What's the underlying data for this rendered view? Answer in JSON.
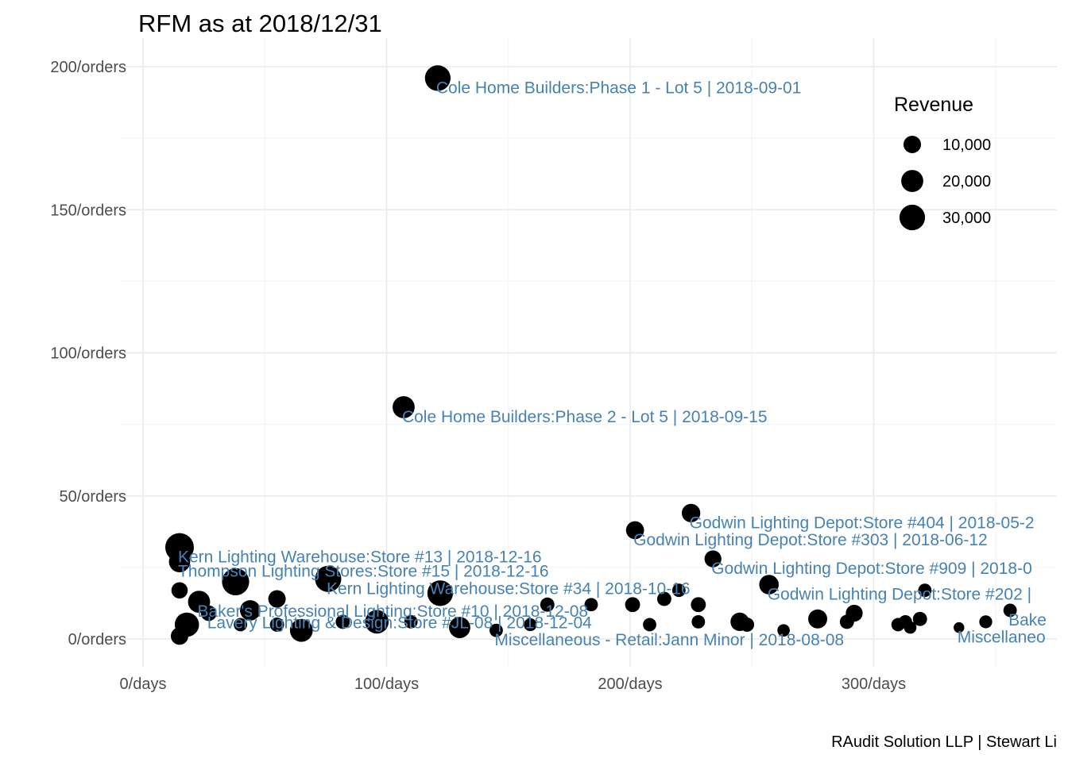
{
  "chart_data": {
    "type": "scatter",
    "title": "RFM as at 2018/12/31",
    "caption": "RAudit Solution LLP | Stewart Li",
    "xlabel": "",
    "ylabel": "",
    "xlim": [
      -10,
      377
    ],
    "ylim": [
      -10,
      208
    ],
    "x_ticks": [
      {
        "value": 0,
        "label": "0/days"
      },
      {
        "value": 100,
        "label": "100/days"
      },
      {
        "value": 200,
        "label": "200/days"
      },
      {
        "value": 300,
        "label": "300/days"
      }
    ],
    "x_minor": [
      50,
      150,
      250,
      350
    ],
    "y_ticks": [
      {
        "value": 0,
        "label": "0/orders"
      },
      {
        "value": 50,
        "label": "50/orders"
      },
      {
        "value": 100,
        "label": "100/orders"
      },
      {
        "value": 150,
        "label": "150/orders"
      },
      {
        "value": 200,
        "label": "200/orders"
      }
    ],
    "y_minor": [
      25,
      75,
      125,
      175
    ],
    "grid": true,
    "size_variable": "Revenue",
    "label_color": "#4682b4",
    "point_color": "#000000",
    "legend": {
      "title": "Revenue",
      "placement": "top-right",
      "entries": [
        {
          "label": "10,000",
          "value": 10000
        },
        {
          "label": "20,000",
          "value": 20000
        },
        {
          "label": "30,000",
          "value": 30000
        }
      ]
    },
    "points": [
      {
        "x": 121,
        "y": 196,
        "revenue": 30000
      },
      {
        "x": 107,
        "y": 81,
        "revenue": 20000
      },
      {
        "x": 225,
        "y": 44,
        "revenue": 12000
      },
      {
        "x": 202,
        "y": 38,
        "revenue": 11000
      },
      {
        "x": 234,
        "y": 28,
        "revenue": 9000
      },
      {
        "x": 257,
        "y": 19,
        "revenue": 14000
      },
      {
        "x": 15,
        "y": 32,
        "revenue": 40000
      },
      {
        "x": 15,
        "y": 27,
        "revenue": 18000
      },
      {
        "x": 38,
        "y": 20,
        "revenue": 35000
      },
      {
        "x": 76,
        "y": 21,
        "revenue": 32000
      },
      {
        "x": 122,
        "y": 16,
        "revenue": 30000
      },
      {
        "x": 15,
        "y": 17,
        "revenue": 8000
      },
      {
        "x": 23,
        "y": 13,
        "revenue": 20000
      },
      {
        "x": 27,
        "y": 9,
        "revenue": 7000
      },
      {
        "x": 44,
        "y": 10,
        "revenue": 16000
      },
      {
        "x": 55,
        "y": 14,
        "revenue": 10000
      },
      {
        "x": 18,
        "y": 5,
        "revenue": 26000
      },
      {
        "x": 15,
        "y": 1,
        "revenue": 10000
      },
      {
        "x": 40,
        "y": 5,
        "revenue": 4000
      },
      {
        "x": 55,
        "y": 5,
        "revenue": 5000
      },
      {
        "x": 65,
        "y": 3,
        "revenue": 22000
      },
      {
        "x": 82,
        "y": 6,
        "revenue": 5000
      },
      {
        "x": 96,
        "y": 6,
        "revenue": 24000
      },
      {
        "x": 110,
        "y": 6,
        "revenue": 4000
      },
      {
        "x": 130,
        "y": 4,
        "revenue": 18000
      },
      {
        "x": 145,
        "y": 3,
        "revenue": 4000
      },
      {
        "x": 159,
        "y": 5,
        "revenue": 3500
      },
      {
        "x": 166,
        "y": 12,
        "revenue": 5000
      },
      {
        "x": 184,
        "y": 12,
        "revenue": 4000
      },
      {
        "x": 201,
        "y": 12,
        "revenue": 6000
      },
      {
        "x": 208,
        "y": 5,
        "revenue": 4000
      },
      {
        "x": 214,
        "y": 14,
        "revenue": 5000
      },
      {
        "x": 220,
        "y": 17,
        "revenue": 4000
      },
      {
        "x": 228,
        "y": 12,
        "revenue": 6000
      },
      {
        "x": 228,
        "y": 6,
        "revenue": 4000
      },
      {
        "x": 245,
        "y": 6,
        "revenue": 12000
      },
      {
        "x": 248,
        "y": 5,
        "revenue": 5000
      },
      {
        "x": 263,
        "y": 3,
        "revenue": 3000
      },
      {
        "x": 277,
        "y": 7,
        "revenue": 13000
      },
      {
        "x": 289,
        "y": 6,
        "revenue": 5000
      },
      {
        "x": 292,
        "y": 9,
        "revenue": 9000
      },
      {
        "x": 310,
        "y": 5,
        "revenue": 4000
      },
      {
        "x": 313,
        "y": 6,
        "revenue": 4000
      },
      {
        "x": 315,
        "y": 4,
        "revenue": 3000
      },
      {
        "x": 319,
        "y": 7,
        "revenue": 5000
      },
      {
        "x": 321,
        "y": 17,
        "revenue": 4000
      },
      {
        "x": 335,
        "y": 4,
        "revenue": 1500
      },
      {
        "x": 346,
        "y": 6,
        "revenue": 3500
      },
      {
        "x": 356,
        "y": 10,
        "revenue": 4000
      }
    ],
    "annotations": [
      {
        "x": 121,
        "y": 196,
        "text": "Cole Home Builders:Phase 1 - Lot 5 | 2018-09-01"
      },
      {
        "x": 107,
        "y": 81,
        "text": "Cole Home Builders:Phase 2 - Lot 5 | 2018-09-15"
      },
      {
        "x": 225,
        "y": 44,
        "text": "Godwin Lighting Depot:Store #404 | 2018-05-2"
      },
      {
        "x": 202,
        "y": 38,
        "text": "Godwin Lighting Depot:Store #303 | 2018-06-12"
      },
      {
        "x": 234,
        "y": 28,
        "text": "Godwin Lighting Depot:Store #909 | 2018-0"
      },
      {
        "x": 257,
        "y": 19,
        "text": "Godwin Lighting Depot:Store #202 |"
      },
      {
        "x": 15,
        "y": 32,
        "text": "Kern Lighting Warehouse:Store #13 | 2018-12-16"
      },
      {
        "x": 15,
        "y": 27,
        "text": "Thompson Lighting Stores:Store #15 | 2018-12-16"
      },
      {
        "x": 76,
        "y": 21,
        "text": "Kern Lighting Warehouse:Store #34 | 2018-10-16"
      },
      {
        "x": 23,
        "y": 13,
        "text": "Baker's Professional Lighting:Store #10 | 2018-12-08"
      },
      {
        "x": 27,
        "y": 9,
        "text": "Lavery Lighting & Design:Store #JL-08 | 2018-12-04"
      },
      {
        "x": 145,
        "y": 3,
        "text": "Miscellaneous - Retail:Jann Minor | 2018-08-08"
      },
      {
        "x": 356,
        "y": 10,
        "text": "Bake"
      },
      {
        "x": 335,
        "y": 4,
        "text": "Miscellaneo"
      }
    ]
  }
}
